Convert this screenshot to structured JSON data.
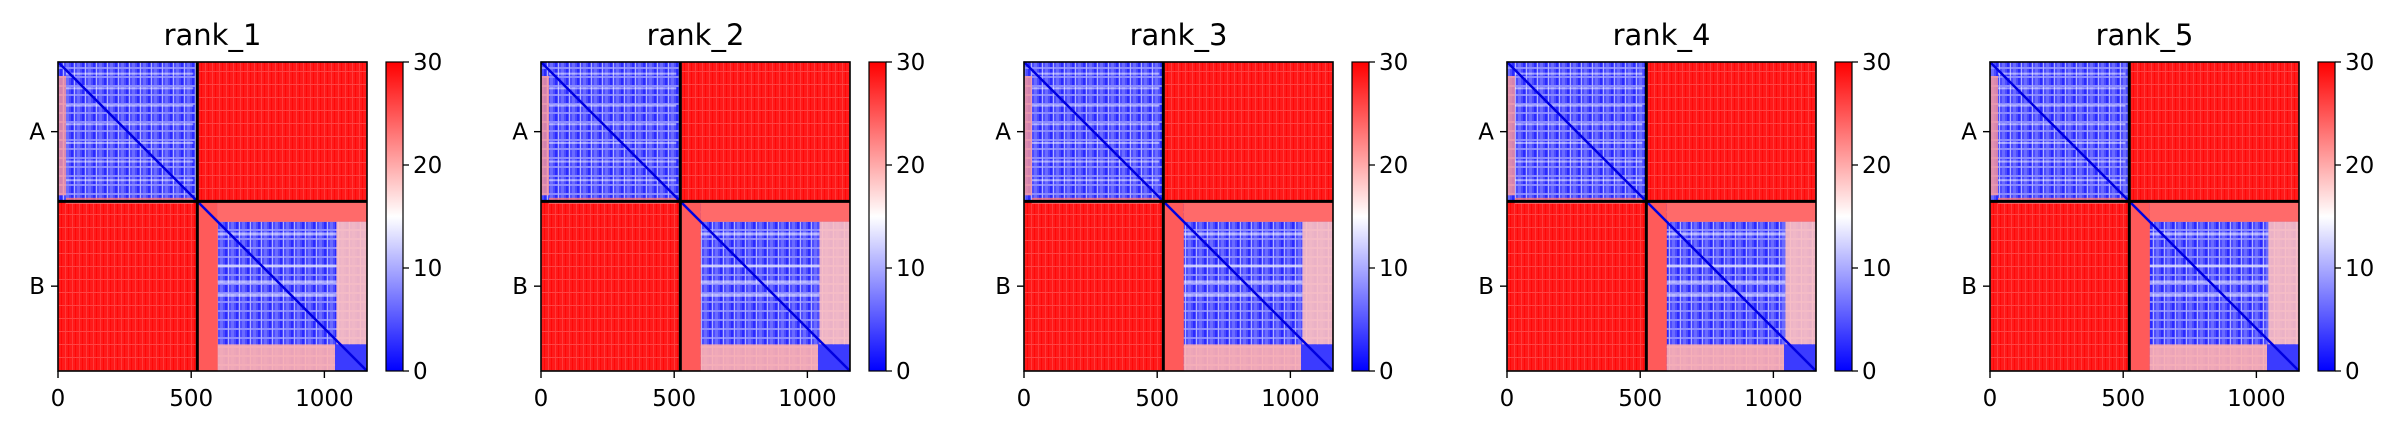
{
  "chart_data": [
    {
      "type": "heatmap",
      "title": "rank_1",
      "x_ticks": [
        0,
        500,
        1000
      ],
      "x_range": [
        0,
        1160
      ],
      "y_range": [
        0,
        1160
      ],
      "chain_labels": [
        "A",
        "B"
      ],
      "chain_boundary": 523,
      "colorbar": {
        "min": 0,
        "max": 30,
        "ticks": [
          0,
          10,
          20,
          30
        ],
        "colormap": "bwr"
      }
    },
    {
      "type": "heatmap",
      "title": "rank_2",
      "x_ticks": [
        0,
        500,
        1000
      ],
      "x_range": [
        0,
        1160
      ],
      "y_range": [
        0,
        1160
      ],
      "chain_labels": [
        "A",
        "B"
      ],
      "chain_boundary": 523,
      "colorbar": {
        "min": 0,
        "max": 30,
        "ticks": [
          0,
          10,
          20,
          30
        ],
        "colormap": "bwr"
      }
    },
    {
      "type": "heatmap",
      "title": "rank_3",
      "x_ticks": [
        0,
        500,
        1000
      ],
      "x_range": [
        0,
        1160
      ],
      "y_range": [
        0,
        1160
      ],
      "chain_labels": [
        "A",
        "B"
      ],
      "chain_boundary": 523,
      "colorbar": {
        "min": 0,
        "max": 30,
        "ticks": [
          0,
          10,
          20,
          30
        ],
        "colormap": "bwr"
      }
    },
    {
      "type": "heatmap",
      "title": "rank_4",
      "x_ticks": [
        0,
        500,
        1000
      ],
      "x_range": [
        0,
        1160
      ],
      "y_range": [
        0,
        1160
      ],
      "chain_labels": [
        "A",
        "B"
      ],
      "chain_boundary": 523,
      "colorbar": {
        "min": 0,
        "max": 30,
        "ticks": [
          0,
          10,
          20,
          30
        ],
        "colormap": "bwr"
      }
    },
    {
      "type": "heatmap",
      "title": "rank_5",
      "x_ticks": [
        0,
        500,
        1000
      ],
      "x_range": [
        0,
        1160
      ],
      "y_range": [
        0,
        1160
      ],
      "chain_labels": [
        "A",
        "B"
      ],
      "chain_boundary": 523,
      "colorbar": {
        "min": 0,
        "max": 30,
        "ticks": [
          0,
          10,
          20,
          30
        ],
        "colormap": "bwr"
      }
    }
  ]
}
